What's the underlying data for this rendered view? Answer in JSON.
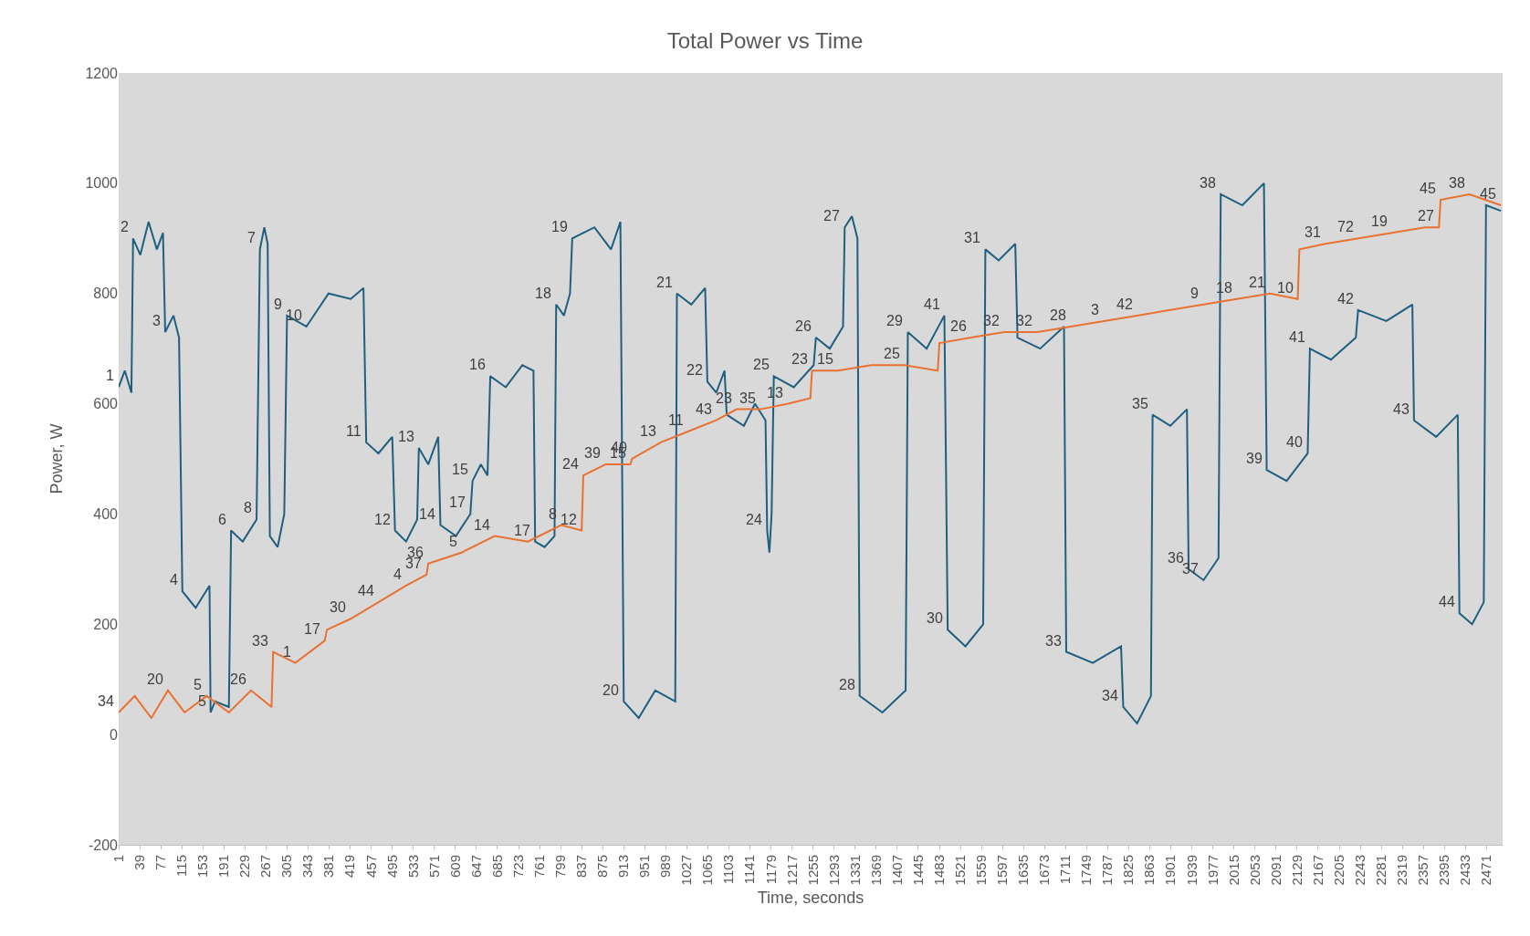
{
  "chart_data": {
    "type": "line",
    "title": "Total Power vs Time",
    "xlabel": "Time, seconds",
    "ylabel": "Power, W",
    "grid": false,
    "marker": "none",
    "line_style": "solid",
    "xlim": [
      1,
      2500
    ],
    "xticks": [
      1,
      39,
      77,
      115,
      153,
      191,
      229,
      267,
      305,
      343,
      381,
      419,
      457,
      495,
      533,
      571,
      609,
      647,
      685,
      723,
      761,
      799,
      837,
      875,
      913,
      951,
      989,
      1027,
      1065,
      1103,
      1141,
      1179,
      1217,
      1255,
      1293,
      1331,
      1369,
      1407,
      1445,
      1483,
      1521,
      1559,
      1597,
      1635,
      1673,
      1711,
      1749,
      1787,
      1825,
      1863,
      1901,
      1939,
      1977,
      2015,
      2053,
      2091,
      2129,
      2167,
      2205,
      2243,
      2281,
      2319,
      2357,
      2395,
      2433,
      2471
    ],
    "ylim": [
      -200,
      1200
    ],
    "yticks": [
      -200,
      0,
      200,
      400,
      600,
      800,
      1000,
      1200
    ],
    "series": [
      {
        "color": "#1f5f7f",
        "x": [
          1,
          12,
          24,
          27,
          40,
          55,
          70,
          81,
          85,
          100,
          110,
          116,
          140,
          165,
          167,
          175,
          200,
          204,
          225,
          250,
          256,
          264,
          270,
          274,
          288,
          300,
          305,
          340,
          380,
          420,
          443,
          448,
          470,
          495,
          500,
          520,
          540,
          543,
          560,
          578,
          582,
          610,
          636,
          640,
          655,
          667,
          672,
          700,
          730,
          750,
          753,
          770,
          788,
          791,
          805,
          816,
          820,
          860,
          890,
          907,
          913,
          940,
          970,
          1006,
          1009,
          1035,
          1060,
          1064,
          1080,
          1095,
          1099,
          1130,
          1150,
          1169,
          1172,
          1176,
          1180,
          1184,
          1220,
          1256,
          1260,
          1285,
          1309,
          1312,
          1325,
          1335,
          1339,
          1380,
          1422,
          1426,
          1460,
          1492,
          1498,
          1530,
          1562,
          1566,
          1590,
          1620,
          1624,
          1665,
          1708,
          1712,
          1760,
          1811,
          1815,
          1840,
          1865,
          1868,
          1900,
          1930,
          1933,
          1960,
          1987,
          1991,
          2030,
          2069,
          2074,
          2110,
          2148,
          2152,
          2190,
          2235,
          2239,
          2290,
          2337,
          2340,
          2380,
          2419,
          2422,
          2445,
          2466,
          2470,
          2497
        ],
        "values": [
          630,
          660,
          620,
          900,
          870,
          930,
          880,
          910,
          730,
          760,
          720,
          260,
          230,
          270,
          40,
          60,
          50,
          370,
          350,
          390,
          880,
          920,
          890,
          360,
          340,
          400,
          760,
          740,
          800,
          790,
          810,
          530,
          510,
          540,
          370,
          350,
          390,
          520,
          490,
          540,
          380,
          360,
          400,
          460,
          490,
          470,
          650,
          630,
          670,
          660,
          350,
          340,
          360,
          780,
          760,
          800,
          900,
          920,
          880,
          930,
          60,
          30,
          80,
          60,
          800,
          780,
          810,
          640,
          620,
          660,
          580,
          560,
          600,
          570,
          370,
          330,
          400,
          650,
          630,
          670,
          720,
          700,
          740,
          920,
          940,
          900,
          70,
          40,
          80,
          730,
          700,
          760,
          190,
          160,
          200,
          880,
          860,
          890,
          720,
          700,
          740,
          150,
          130,
          160,
          50,
          20,
          70,
          580,
          560,
          590,
          300,
          280,
          320,
          980,
          960,
          1000,
          480,
          460,
          510,
          700,
          680,
          720,
          770,
          750,
          780,
          570,
          540,
          580,
          220,
          200,
          240,
          960,
          950
        ]
      },
      {
        "color": "#e97132",
        "x": [
          1,
          30,
          60,
          90,
          120,
          160,
          200,
          240,
          277,
          280,
          320,
          373,
          377,
          420,
          470,
          520,
          557,
          560,
          620,
          680,
          740,
          800,
          837,
          840,
          880,
          925,
          928,
          980,
          1030,
          1080,
          1117,
          1160,
          1210,
          1250,
          1253,
          1300,
          1360,
          1420,
          1480,
          1483,
          1540,
          1600,
          1660,
          1720,
          1780,
          1840,
          1900,
          1960,
          2020,
          2080,
          2130,
          2133,
          2180,
          2240,
          2300,
          2360,
          2385,
          2388,
          2440,
          2497
        ],
        "values": [
          40,
          70,
          30,
          80,
          40,
          70,
          40,
          80,
          50,
          150,
          130,
          170,
          190,
          210,
          240,
          270,
          290,
          310,
          330,
          360,
          350,
          380,
          370,
          470,
          490,
          490,
          500,
          530,
          550,
          570,
          590,
          590,
          600,
          610,
          660,
          660,
          670,
          670,
          660,
          710,
          720,
          730,
          730,
          740,
          750,
          760,
          770,
          780,
          790,
          800,
          790,
          880,
          890,
          900,
          910,
          920,
          920,
          970,
          980,
          960
        ]
      }
    ],
    "annotations": [
      {
        "text": "1",
        "x": 1,
        "y": 630
      },
      {
        "text": "2",
        "x": 27,
        "y": 900
      },
      {
        "text": "3",
        "x": 85,
        "y": 730
      },
      {
        "text": "4",
        "x": 116,
        "y": 260
      },
      {
        "text": "5",
        "x": 167,
        "y": 40
      },
      {
        "text": "5",
        "x": 160,
        "y": 70
      },
      {
        "text": "6",
        "x": 204,
        "y": 370
      },
      {
        "text": "7",
        "x": 256,
        "y": 880
      },
      {
        "text": "8",
        "x": 250,
        "y": 390
      },
      {
        "text": "9",
        "x": 305,
        "y": 760
      },
      {
        "text": "10",
        "x": 340,
        "y": 740
      },
      {
        "text": "11",
        "x": 448,
        "y": 530
      },
      {
        "text": "12",
        "x": 500,
        "y": 370
      },
      {
        "text": "13",
        "x": 543,
        "y": 520
      },
      {
        "text": "14",
        "x": 582,
        "y": 380
      },
      {
        "text": "15",
        "x": 640,
        "y": 460
      },
      {
        "text": "16",
        "x": 672,
        "y": 650
      },
      {
        "text": "17",
        "x": 636,
        "y": 400
      },
      {
        "text": "14",
        "x": 680,
        "y": 360
      },
      {
        "text": "17",
        "x": 753,
        "y": 350
      },
      {
        "text": "8",
        "x": 800,
        "y": 380
      },
      {
        "text": "12",
        "x": 837,
        "y": 370
      },
      {
        "text": "18",
        "x": 791,
        "y": 780
      },
      {
        "text": "19",
        "x": 820,
        "y": 900
      },
      {
        "text": "20",
        "x": 913,
        "y": 60
      },
      {
        "text": "21",
        "x": 1009,
        "y": 800
      },
      {
        "text": "22",
        "x": 1064,
        "y": 640
      },
      {
        "text": "24",
        "x": 1172,
        "y": 370
      },
      {
        "text": "25",
        "x": 1184,
        "y": 650
      },
      {
        "text": "26",
        "x": 1260,
        "y": 720
      },
      {
        "text": "27",
        "x": 1312,
        "y": 920
      },
      {
        "text": "28",
        "x": 1339,
        "y": 70
      },
      {
        "text": "29",
        "x": 1426,
        "y": 730
      },
      {
        "text": "30",
        "x": 1498,
        "y": 190
      },
      {
        "text": "31",
        "x": 1566,
        "y": 880
      },
      {
        "text": "33",
        "x": 1712,
        "y": 150
      },
      {
        "text": "34",
        "x": 1815,
        "y": 50
      },
      {
        "text": "35",
        "x": 1868,
        "y": 580
      },
      {
        "text": "36",
        "x": 1933,
        "y": 300
      },
      {
        "text": "37",
        "x": 1960,
        "y": 280
      },
      {
        "text": "38",
        "x": 1991,
        "y": 980
      },
      {
        "text": "39",
        "x": 2074,
        "y": 480
      },
      {
        "text": "40",
        "x": 2148,
        "y": 510
      },
      {
        "text": "41",
        "x": 2152,
        "y": 700
      },
      {
        "text": "42",
        "x": 2239,
        "y": 770
      },
      {
        "text": "43",
        "x": 2340,
        "y": 570
      },
      {
        "text": "44",
        "x": 2422,
        "y": 220
      },
      {
        "text": "41",
        "x": 1492,
        "y": 760
      },
      {
        "text": "34",
        "x": 1,
        "y": 40
      },
      {
        "text": "20",
        "x": 90,
        "y": 80
      },
      {
        "text": "26",
        "x": 240,
        "y": 80
      },
      {
        "text": "33",
        "x": 280,
        "y": 150
      },
      {
        "text": "1",
        "x": 320,
        "y": 130
      },
      {
        "text": "17",
        "x": 373,
        "y": 170
      },
      {
        "text": "30",
        "x": 420,
        "y": 210
      },
      {
        "text": "44",
        "x": 470,
        "y": 240
      },
      {
        "text": "4",
        "x": 520,
        "y": 270
      },
      {
        "text": "37",
        "x": 557,
        "y": 290
      },
      {
        "text": "36",
        "x": 560,
        "y": 310
      },
      {
        "text": "5",
        "x": 620,
        "y": 330
      },
      {
        "text": "24",
        "x": 840,
        "y": 470
      },
      {
        "text": "39",
        "x": 880,
        "y": 490
      },
      {
        "text": "15",
        "x": 925,
        "y": 490
      },
      {
        "text": "40",
        "x": 928,
        "y": 500
      },
      {
        "text": "13",
        "x": 980,
        "y": 530
      },
      {
        "text": "11",
        "x": 1030,
        "y": 550
      },
      {
        "text": "43",
        "x": 1080,
        "y": 570
      },
      {
        "text": "23",
        "x": 1117,
        "y": 590
      },
      {
        "text": "35",
        "x": 1160,
        "y": 590
      },
      {
        "text": "13",
        "x": 1210,
        "y": 600
      },
      {
        "text": "23",
        "x": 1253,
        "y": 660
      },
      {
        "text": "15",
        "x": 1300,
        "y": 660
      },
      {
        "text": "25",
        "x": 1420,
        "y": 670
      },
      {
        "text": "32",
        "x": 1600,
        "y": 730
      },
      {
        "text": "26",
        "x": 1540,
        "y": 720
      },
      {
        "text": "32",
        "x": 1660,
        "y": 730
      },
      {
        "text": "28",
        "x": 1720,
        "y": 740
      },
      {
        "text": "3",
        "x": 1780,
        "y": 750
      },
      {
        "text": "42",
        "x": 1840,
        "y": 760
      },
      {
        "text": "9",
        "x": 1960,
        "y": 780
      },
      {
        "text": "18",
        "x": 2020,
        "y": 790
      },
      {
        "text": "21",
        "x": 2080,
        "y": 800
      },
      {
        "text": "10",
        "x": 2130,
        "y": 790
      },
      {
        "text": "31",
        "x": 2180,
        "y": 890
      },
      {
        "text": "72",
        "x": 2240,
        "y": 900
      },
      {
        "text": "19",
        "x": 2300,
        "y": 910
      },
      {
        "text": "27",
        "x": 2385,
        "y": 920
      },
      {
        "text": "45",
        "x": 2388,
        "y": 970
      },
      {
        "text": "38",
        "x": 2440,
        "y": 980
      },
      {
        "text": "45",
        "x": 2497,
        "y": 960
      }
    ]
  }
}
